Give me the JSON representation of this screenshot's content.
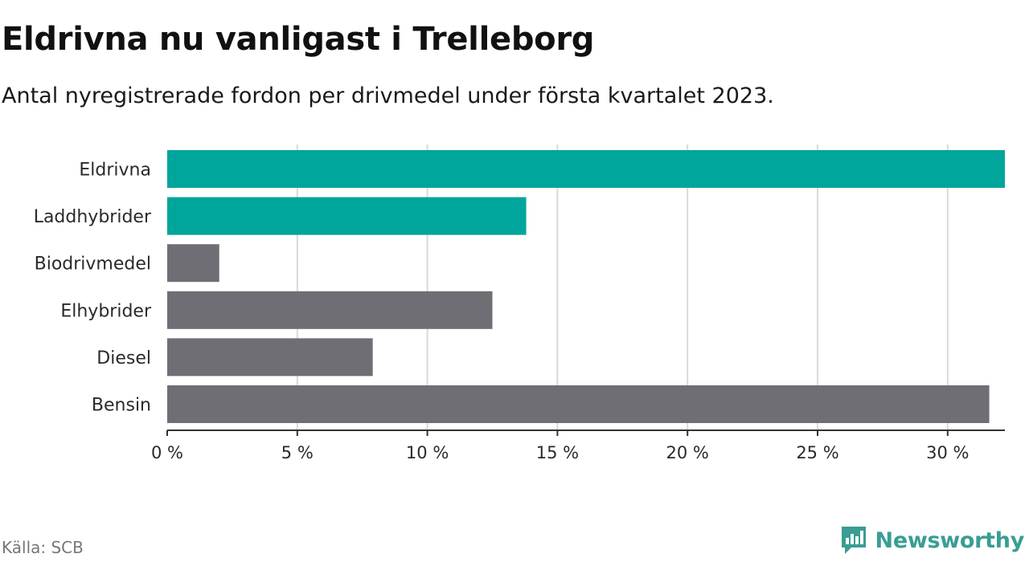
{
  "header": {
    "title": "Eldrivna nu vanligast i Trelleborg",
    "subtitle": "Antal nyregistrerade fordon per drivmedel under första kvartalet 2023."
  },
  "footer": {
    "source": "Källa: SCB",
    "brand": "Newsworthy",
    "brand_icon": "newsworthy-logo-icon"
  },
  "colors": {
    "highlight": "#00a59b",
    "muted": "#6f6e75",
    "grid": "#d9d9d9",
    "axis": "#333333",
    "brand": "#3a9d93"
  },
  "chart_data": {
    "type": "bar",
    "orientation": "horizontal",
    "categories": [
      "Eldrivna",
      "Laddhybrider",
      "Biodrivmedel",
      "Elhybrider",
      "Diesel",
      "Bensin"
    ],
    "values": [
      32.2,
      13.8,
      2.0,
      12.5,
      7.9,
      31.6
    ],
    "highlighted": [
      true,
      true,
      false,
      false,
      false,
      false
    ],
    "xticks": [
      0,
      5,
      10,
      15,
      20,
      25,
      30
    ],
    "xtick_labels": [
      "0 %",
      "5 %",
      "10 %",
      "15 %",
      "20 %",
      "25 %",
      "30 %"
    ],
    "xlim": [
      0,
      32.2
    ],
    "grid": true,
    "legend": "none"
  }
}
